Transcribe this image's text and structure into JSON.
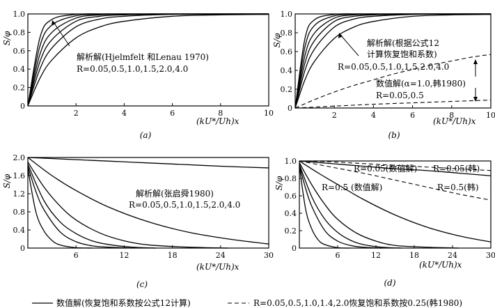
{
  "chart_data": [
    {
      "id": "a",
      "type": "line",
      "caption": "(a)",
      "ylabel": "S/φ",
      "xlabel": "(kU*/Uh)x",
      "xlim": [
        0,
        10
      ],
      "ylim": [
        0,
        1.0
      ],
      "xticks": [
        "2",
        "4",
        "6",
        "8",
        "10"
      ],
      "yticks": [
        "0",
        "0.2",
        "0.4",
        "0.6",
        "0.8",
        "1.0"
      ],
      "annotation": [
        "解析解(Hjelmfelt 和Lenau 1970)",
        "R=0.05,0.5,1.0,1.5,2.0,4.0"
      ],
      "series": [
        {
          "style": "solid",
          "x": [
            0,
            0.5,
            1,
            2,
            3,
            4,
            6,
            8,
            10
          ],
          "values": [
            0,
            0.74,
            0.94,
            0.995,
            1,
            1,
            1,
            1,
            1
          ]
        },
        {
          "style": "solid",
          "x": [
            0,
            0.5,
            1,
            2,
            3,
            4,
            6,
            8,
            10
          ],
          "values": [
            0,
            0.65,
            0.88,
            0.98,
            0.997,
            1,
            1,
            1,
            1
          ]
        },
        {
          "style": "solid",
          "x": [
            0,
            0.5,
            1,
            2,
            3,
            4,
            6,
            8,
            10
          ],
          "values": [
            0,
            0.56,
            0.8,
            0.955,
            0.99,
            0.997,
            1,
            1,
            1
          ]
        },
        {
          "style": "solid",
          "x": [
            0,
            0.5,
            1,
            2,
            3,
            4,
            6,
            8,
            10
          ],
          "values": [
            0,
            0.48,
            0.72,
            0.92,
            0.975,
            0.99,
            0.998,
            1,
            1
          ]
        },
        {
          "style": "solid",
          "x": [
            0,
            0.5,
            1,
            2,
            3,
            4,
            6,
            8,
            10
          ],
          "values": [
            0,
            0.4,
            0.63,
            0.86,
            0.945,
            0.975,
            0.995,
            0.999,
            1
          ]
        },
        {
          "style": "solid",
          "x": [
            0,
            0.5,
            1,
            2,
            3,
            4,
            6,
            8,
            10
          ],
          "values": [
            0,
            0.3,
            0.5,
            0.74,
            0.86,
            0.92,
            0.975,
            0.99,
            0.995
          ]
        }
      ]
    },
    {
      "id": "b",
      "type": "line",
      "caption": "(b)",
      "ylabel": "S/φ",
      "xlabel": "(kU*/Uh)x",
      "xlim": [
        0,
        10
      ],
      "ylim": [
        0,
        1.0
      ],
      "xticks": [
        "2",
        "4",
        "6",
        "8",
        "10"
      ],
      "yticks": [
        "0",
        "0.2",
        "0.4",
        "0.6",
        "0.8",
        "1.0"
      ],
      "annotation": [
        "解析解(根据公式12",
        "计算恢复饱和系数)",
        "R=0.05,0.5,1.0,1.5,2.0,4.0",
        "数值解(α=1.0,韩1980)",
        "R=0.05,0.5"
      ],
      "series": [
        {
          "style": "solid",
          "x": [
            0,
            0.5,
            1,
            2,
            3,
            4,
            6,
            8,
            10
          ],
          "values": [
            0,
            0.74,
            0.94,
            0.995,
            1,
            1,
            1,
            1,
            1
          ]
        },
        {
          "style": "solid",
          "x": [
            0,
            0.5,
            1,
            2,
            3,
            4,
            6,
            8,
            10
          ],
          "values": [
            0,
            0.65,
            0.88,
            0.98,
            0.997,
            1,
            1,
            1,
            1
          ]
        },
        {
          "style": "solid",
          "x": [
            0,
            0.5,
            1,
            2,
            3,
            4,
            6,
            8,
            10
          ],
          "values": [
            0,
            0.56,
            0.8,
            0.955,
            0.99,
            0.997,
            1,
            1,
            1
          ]
        },
        {
          "style": "solid",
          "x": [
            0,
            0.5,
            1,
            2,
            3,
            4,
            6,
            8,
            10
          ],
          "values": [
            0,
            0.48,
            0.72,
            0.92,
            0.975,
            0.99,
            0.998,
            1,
            1
          ]
        },
        {
          "style": "solid",
          "x": [
            0,
            0.5,
            1,
            2,
            3,
            4,
            6,
            8,
            10
          ],
          "values": [
            0,
            0.4,
            0.63,
            0.86,
            0.945,
            0.975,
            0.995,
            0.999,
            1
          ]
        },
        {
          "style": "solid",
          "x": [
            0,
            0.5,
            1,
            2,
            3,
            4,
            6,
            8,
            10
          ],
          "values": [
            0,
            0.3,
            0.5,
            0.74,
            0.86,
            0.92,
            0.975,
            0.99,
            0.995
          ]
        },
        {
          "style": "dashed",
          "x": [
            0,
            1,
            2,
            3,
            4,
            5,
            6,
            7,
            8,
            9,
            10
          ],
          "values": [
            0,
            0.09,
            0.17,
            0.24,
            0.3,
            0.36,
            0.41,
            0.46,
            0.5,
            0.54,
            0.57
          ]
        },
        {
          "style": "dashed",
          "x": [
            0,
            1,
            2,
            4,
            6,
            8,
            10
          ],
          "values": [
            0,
            0.01,
            0.02,
            0.04,
            0.055,
            0.07,
            0.085
          ]
        }
      ]
    },
    {
      "id": "c",
      "type": "line",
      "caption": "(c)",
      "ylabel": "S/φ",
      "xlabel": "(kU*/Uh)x",
      "xlim": [
        0,
        30
      ],
      "ylim": [
        0,
        2.0
      ],
      "xticks": [
        "6",
        "12",
        "18",
        "24",
        "30"
      ],
      "yticks": [
        "0",
        "0.4",
        "0.8",
        "1.2",
        "1.6",
        "2.0"
      ],
      "annotation": [
        "解析解(张启舜1980)",
        "R=0.05,0.5,1.0,1.5,2.0,4.0"
      ],
      "series": [
        {
          "style": "solid",
          "x": [
            0,
            5,
            10,
            15,
            20,
            25,
            30
          ],
          "values": [
            2.0,
            1.96,
            1.92,
            1.88,
            1.84,
            1.8,
            1.77
          ]
        },
        {
          "style": "solid",
          "x": [
            0,
            3,
            6,
            10,
            15,
            20,
            25,
            30
          ],
          "values": [
            2.0,
            1.6,
            1.27,
            0.91,
            0.58,
            0.35,
            0.2,
            0.09
          ]
        },
        {
          "style": "solid",
          "x": [
            0,
            2,
            4,
            6,
            9,
            12,
            15,
            20,
            25
          ],
          "values": [
            1.9,
            1.35,
            0.93,
            0.62,
            0.33,
            0.16,
            0.07,
            0.02,
            0
          ]
        },
        {
          "style": "solid",
          "x": [
            0,
            2,
            4,
            6,
            8,
            10,
            13,
            16
          ],
          "values": [
            1.85,
            1.05,
            0.58,
            0.32,
            0.16,
            0.08,
            0.02,
            0
          ]
        },
        {
          "style": "solid",
          "x": [
            0,
            1,
            2,
            4,
            6,
            8,
            10,
            13
          ],
          "values": [
            1.8,
            1.25,
            0.85,
            0.36,
            0.14,
            0.05,
            0.02,
            0
          ]
        },
        {
          "style": "solid",
          "x": [
            0,
            1,
            2,
            3,
            4,
            6,
            8
          ],
          "values": [
            1.75,
            0.8,
            0.38,
            0.17,
            0.07,
            0.01,
            0
          ]
        }
      ]
    },
    {
      "id": "d",
      "type": "line",
      "caption": "(d)",
      "ylabel": "S/φ",
      "xlabel": "(kU*/Uh)x",
      "xlim": [
        0,
        30
      ],
      "ylim": [
        0,
        1.0
      ],
      "xticks": [
        "6",
        "12",
        "18",
        "24",
        "30"
      ],
      "yticks": [
        "0",
        "0.2",
        "0.4",
        "0.6",
        "0.8",
        "1.0"
      ],
      "annotation": [
        "R=0.05(数值解)",
        "R=0.05(韩)",
        "R=0.5 (数值解)",
        "R=0.5(韩)"
      ],
      "series": [
        {
          "style": "solid",
          "x": [
            0,
            5,
            10,
            15,
            20,
            25,
            30
          ],
          "values": [
            1.0,
            0.97,
            0.94,
            0.91,
            0.89,
            0.86,
            0.83
          ]
        },
        {
          "style": "solid",
          "x": [
            0,
            3,
            6,
            10,
            15,
            20,
            25,
            30
          ],
          "values": [
            1.0,
            0.86,
            0.73,
            0.56,
            0.38,
            0.24,
            0.14,
            0.07
          ]
        },
        {
          "style": "solid",
          "x": [
            0,
            2,
            4,
            6,
            9,
            12,
            15,
            20,
            25
          ],
          "values": [
            0.98,
            0.72,
            0.5,
            0.33,
            0.17,
            0.08,
            0.03,
            0.01,
            0
          ]
        },
        {
          "style": "solid",
          "x": [
            0,
            2,
            4,
            6,
            8,
            10,
            13,
            16
          ],
          "values": [
            0.96,
            0.58,
            0.33,
            0.18,
            0.09,
            0.04,
            0.01,
            0
          ]
        },
        {
          "style": "solid",
          "x": [
            0,
            1,
            2,
            4,
            6,
            8,
            10,
            13
          ],
          "values": [
            0.95,
            0.68,
            0.47,
            0.2,
            0.08,
            0.03,
            0.01,
            0
          ]
        },
        {
          "style": "solid",
          "x": [
            0,
            1,
            2,
            3,
            4,
            6,
            8
          ],
          "values": [
            0.94,
            0.44,
            0.21,
            0.09,
            0.04,
            0.005,
            0
          ]
        },
        {
          "style": "dashed",
          "x": [
            0,
            5,
            10,
            15,
            20,
            25,
            30
          ],
          "values": [
            1.0,
            0.99,
            0.97,
            0.95,
            0.93,
            0.91,
            0.89
          ]
        },
        {
          "style": "dashed",
          "x": [
            0,
            5,
            10,
            15,
            20,
            25,
            30
          ],
          "values": [
            1.0,
            0.93,
            0.86,
            0.78,
            0.7,
            0.62,
            0.55
          ]
        }
      ]
    }
  ],
  "legend": {
    "solid_label": "数值解(恢复饱和系数按公式12计算)",
    "dashed_label": "R=0.05,0.5,1.0,1.4,2.0恢复饱和系数按0.25(韩1980)"
  }
}
